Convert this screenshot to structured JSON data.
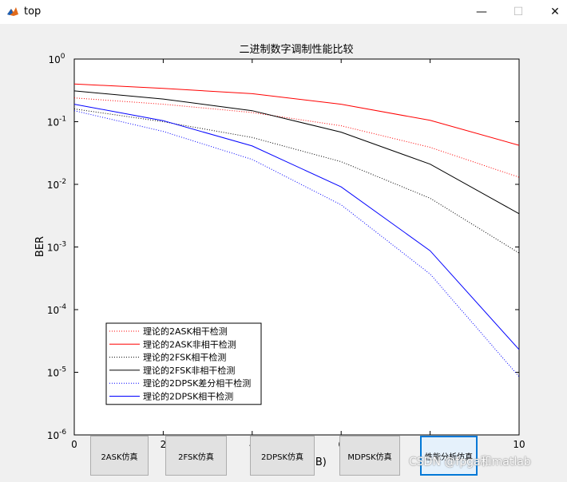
{
  "window": {
    "title": "top",
    "min_symbol": "—",
    "max_symbol": "☐",
    "close_symbol": "✕"
  },
  "buttons": [
    {
      "label": "2ASK仿真"
    },
    {
      "label": "2FSK仿真"
    },
    {
      "label": "2DPSK仿真"
    },
    {
      "label": "MDPSK仿真"
    },
    {
      "label": "性能分析仿真"
    }
  ],
  "watermark": "CSDN @fpga和matlab",
  "chart_data": {
    "type": "line",
    "title": "二进制数字调制性能比较",
    "xlabel": "SNR/bit(dB)",
    "ylabel": "BER",
    "y_scale": "log",
    "xlim": [
      0,
      10
    ],
    "ylim": [
      1e-06,
      1
    ],
    "x_tick_labels": [
      "0",
      "2",
      "4",
      "6",
      "8",
      "10"
    ],
    "y_tick_labels": [
      {
        "base": "10",
        "exp": "-6"
      },
      {
        "base": "10",
        "exp": "-5"
      },
      {
        "base": "10",
        "exp": "-4"
      },
      {
        "base": "10",
        "exp": "-3"
      },
      {
        "base": "10",
        "exp": "-2"
      },
      {
        "base": "10",
        "exp": "-1"
      },
      {
        "base": "10",
        "exp": "0"
      }
    ],
    "grid": false,
    "legend_position": "lower-left",
    "x": [
      0,
      2,
      4,
      6,
      8,
      10
    ],
    "series": [
      {
        "name": "理论的2ASK相干检测",
        "color": "#ff0000",
        "style": "dotted",
        "values": [
          0.24,
          0.19,
          0.14,
          0.086,
          0.039,
          0.013
        ]
      },
      {
        "name": "理论的2ASK非相干检测",
        "color": "#ff0000",
        "style": "solid",
        "values": [
          0.4,
          0.34,
          0.28,
          0.19,
          0.105,
          0.042
        ]
      },
      {
        "name": "理论的2FSK相干检测",
        "color": "#000000",
        "style": "dotted",
        "values": [
          0.16,
          0.1,
          0.056,
          0.023,
          0.006,
          0.0008
        ]
      },
      {
        "name": "理论的2FSK非相干检测",
        "color": "#000000",
        "style": "solid",
        "values": [
          0.31,
          0.23,
          0.15,
          0.068,
          0.021,
          0.0034
        ]
      },
      {
        "name": "理论的2DPSK差分相干检测",
        "color": "#0000ff",
        "style": "dotted",
        "values": [
          0.15,
          0.07,
          0.025,
          0.0047,
          0.00037,
          8.5e-06
        ]
      },
      {
        "name": "理论的2DPSK相干检测",
        "color": "#0000ff",
        "style": "solid",
        "values": [
          0.19,
          0.104,
          0.041,
          0.0091,
          0.00087,
          2.3e-05
        ]
      }
    ]
  }
}
